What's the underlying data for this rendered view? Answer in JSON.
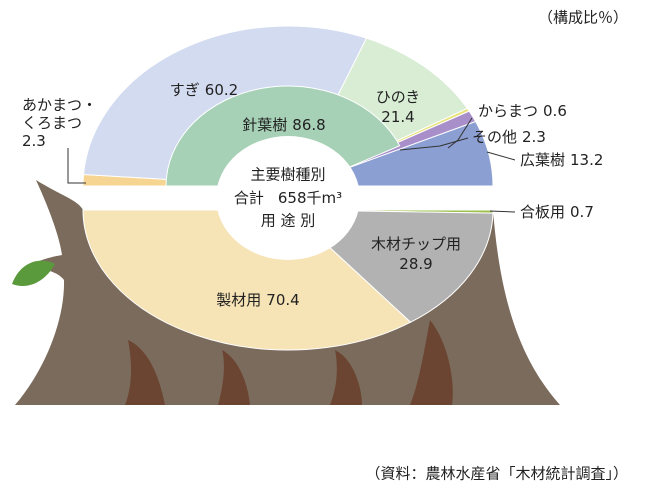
{
  "chart_data": {
    "type": "half-donut",
    "note": "（構成比％）",
    "source": "（資料：農林水産省「木材統計調査」）",
    "center": {
      "top": "主要樹種別",
      "total_label": "合計",
      "total": 658,
      "total_unit": "千m³",
      "bottom": "用 途 別"
    },
    "upper": {
      "series": [
        {
          "name": [
            "あかまつ・",
            "くろまつ"
          ],
          "value": 2.3,
          "color": "#f6d592"
        },
        {
          "name": "すぎ",
          "value": 60.2,
          "color": "#d2dbf0"
        },
        {
          "name": "ひのき",
          "value": 21.4,
          "color": "#d9edd5"
        },
        {
          "name": "からまつ",
          "value": 0.6,
          "color": "#e9e17a"
        },
        {
          "name": "その他",
          "value": 2.3,
          "color": "#a88fca"
        },
        {
          "name": "広葉樹",
          "value": 13.2,
          "color": "#8c9fd3"
        }
      ],
      "inner": {
        "name": "針葉樹",
        "value": 86.8,
        "color": "#a7d1b6"
      }
    },
    "lower": {
      "series": [
        {
          "name": "合板用",
          "value": 0.7,
          "color": "#9dc04f"
        },
        {
          "name": "木材チップ用",
          "value": 28.9,
          "color": "#b2b2b2"
        },
        {
          "name": "製材用",
          "value": 70.4,
          "color": "#f6e3b6"
        }
      ]
    }
  }
}
